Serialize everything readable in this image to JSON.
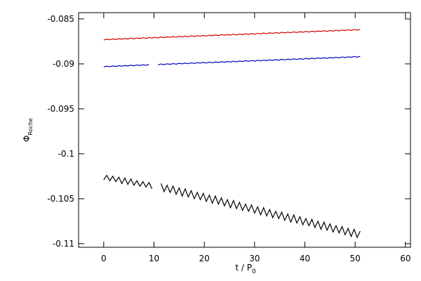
{
  "chart_data": {
    "type": "line",
    "xlabel": "t / P",
    "xlabel_sub": "0",
    "ylabel": "Φ",
    "ylabel_sub": "Roche",
    "xlim": [
      -5,
      61
    ],
    "xticks": [
      0,
      10,
      20,
      30,
      40,
      50,
      60
    ],
    "ylim": [
      -0.1104,
      -0.0843
    ],
    "yticks": [
      -0.11,
      -0.105,
      -0.1,
      -0.095,
      -0.09,
      -0.085
    ],
    "x": [
      0,
      0.6,
      1.2,
      1.8,
      2.4,
      3,
      3.6,
      4.2,
      4.8,
      5.4,
      6,
      6.6,
      7.2,
      7.8,
      8.4,
      9,
      9.6,
      10.2,
      10.8,
      11.4,
      12,
      12.6,
      13.2,
      13.8,
      14.4,
      15,
      15.6,
      16.2,
      16.8,
      17.4,
      18,
      18.6,
      19.2,
      19.8,
      20.4,
      21,
      21.6,
      22.2,
      22.8,
      23.4,
      24,
      24.6,
      25.2,
      25.8,
      26.4,
      27,
      27.6,
      28.2,
      28.8,
      29.4,
      30,
      30.6,
      31.2,
      31.8,
      32.4,
      33,
      33.6,
      34.2,
      34.8,
      35.4,
      36,
      36.6,
      37.2,
      37.8,
      38.4,
      39,
      39.6,
      40.2,
      40.8,
      41.4,
      42,
      42.6,
      43.2,
      43.8,
      44.4,
      45,
      45.6,
      46.2,
      46.8,
      47.4,
      48,
      48.6,
      49.2,
      49.8,
      50.4,
      51
    ],
    "series": [
      {
        "color": "#d00000",
        "values": [
          -0.08734,
          -0.08725,
          -0.08731,
          -0.08722,
          -0.08729,
          -0.0872,
          -0.08726,
          -0.08717,
          -0.08724,
          -0.08714,
          -0.08721,
          -0.08712,
          -0.08718,
          -0.08709,
          -0.08716,
          -0.08707,
          -0.08713,
          -0.08704,
          -0.08711,
          -0.08701,
          -0.08708,
          -0.08699,
          -0.08705,
          -0.08696,
          -0.08703,
          -0.08694,
          -0.087,
          -0.08691,
          -0.08698,
          -0.08688,
          -0.08695,
          -0.08686,
          -0.08692,
          -0.08683,
          -0.0869,
          -0.08681,
          -0.08687,
          -0.08678,
          -0.08685,
          -0.08675,
          -0.08682,
          -0.08673,
          -0.08679,
          -0.0867,
          -0.08677,
          -0.08668,
          -0.08674,
          -0.08665,
          -0.08672,
          -0.08662,
          -0.08669,
          -0.0866,
          -0.08666,
          -0.08657,
          -0.08664,
          -0.08655,
          -0.08661,
          -0.08652,
          -0.08659,
          -0.08649,
          -0.08656,
          -0.08647,
          -0.08653,
          -0.08644,
          -0.08651,
          -0.08642,
          -0.08648,
          -0.08639,
          -0.08646,
          -0.08636,
          -0.08643,
          -0.08634,
          -0.0864,
          -0.08631,
          -0.08638,
          -0.08629,
          -0.08635,
          -0.08626,
          -0.08633,
          -0.08623,
          -0.0863,
          -0.08621,
          -0.08627,
          -0.08618,
          -0.08625,
          -0.08616
        ]
      },
      {
        "color": "#0000c0",
        "values": [
          -0.09034,
          -0.09025,
          -0.09031,
          -0.09022,
          -0.09029,
          -0.0902,
          -0.09026,
          -0.09017,
          -0.09024,
          -0.09014,
          -0.09021,
          -0.09012,
          -0.09018,
          -0.09009,
          -0.09016,
          -0.09007,
          null,
          null,
          -0.09011,
          -0.09001,
          -0.09008,
          -0.08999,
          -0.09005,
          -0.08996,
          -0.09003,
          -0.08994,
          -0.09,
          -0.08991,
          -0.08998,
          -0.08988,
          -0.08995,
          -0.08986,
          -0.08992,
          -0.08983,
          -0.0899,
          -0.08981,
          -0.08987,
          -0.08978,
          -0.08985,
          -0.08975,
          -0.08982,
          -0.08973,
          -0.08979,
          -0.0897,
          -0.08977,
          -0.08968,
          -0.08974,
          -0.08965,
          -0.08972,
          -0.08962,
          -0.08969,
          -0.0896,
          -0.08966,
          -0.08957,
          -0.08964,
          -0.08955,
          -0.08961,
          -0.08952,
          -0.08959,
          -0.08949,
          -0.08956,
          -0.08947,
          -0.08953,
          -0.08944,
          -0.08951,
          -0.08942,
          -0.08948,
          -0.08939,
          -0.08946,
          -0.08936,
          -0.08943,
          -0.08934,
          -0.0894,
          -0.08931,
          -0.08938,
          -0.08929,
          -0.08935,
          -0.08926,
          -0.08933,
          -0.08923,
          -0.0893,
          -0.08921,
          -0.08927,
          -0.08918,
          -0.08925,
          -0.08916
        ]
      },
      {
        "color": "#000000",
        "values": [
          -0.1029,
          -0.1024,
          -0.103,
          -0.1025,
          -0.1031,
          -0.1026,
          -0.1033,
          -0.1027,
          -0.1034,
          -0.1028,
          -0.1035,
          -0.103,
          -0.1036,
          -0.1031,
          -0.1037,
          -0.1032,
          -0.1039,
          null,
          null,
          -0.1033,
          -0.1042,
          -0.1035,
          -0.1043,
          -0.1036,
          -0.1045,
          -0.1038,
          -0.1047,
          -0.1039,
          -0.1048,
          -0.1041,
          -0.105,
          -0.1043,
          -0.1051,
          -0.1044,
          -0.1053,
          -0.1046,
          -0.1055,
          -0.1047,
          -0.1056,
          -0.1049,
          -0.1058,
          -0.1051,
          -0.106,
          -0.1052,
          -0.1061,
          -0.1054,
          -0.1063,
          -0.1056,
          -0.1064,
          -0.1057,
          -0.1066,
          -0.1059,
          -0.1068,
          -0.106,
          -0.1069,
          -0.1062,
          -0.1071,
          -0.1064,
          -0.1072,
          -0.1065,
          -0.1074,
          -0.1067,
          -0.1076,
          -0.1068,
          -0.1077,
          -0.107,
          -0.1079,
          -0.1072,
          -0.108,
          -0.1073,
          -0.1082,
          -0.1075,
          -0.1084,
          -0.1076,
          -0.1085,
          -0.1078,
          -0.1087,
          -0.108,
          -0.1088,
          -0.1081,
          -0.109,
          -0.1083,
          -0.1092,
          -0.1084,
          -0.1093,
          -0.1086
        ]
      }
    ]
  }
}
